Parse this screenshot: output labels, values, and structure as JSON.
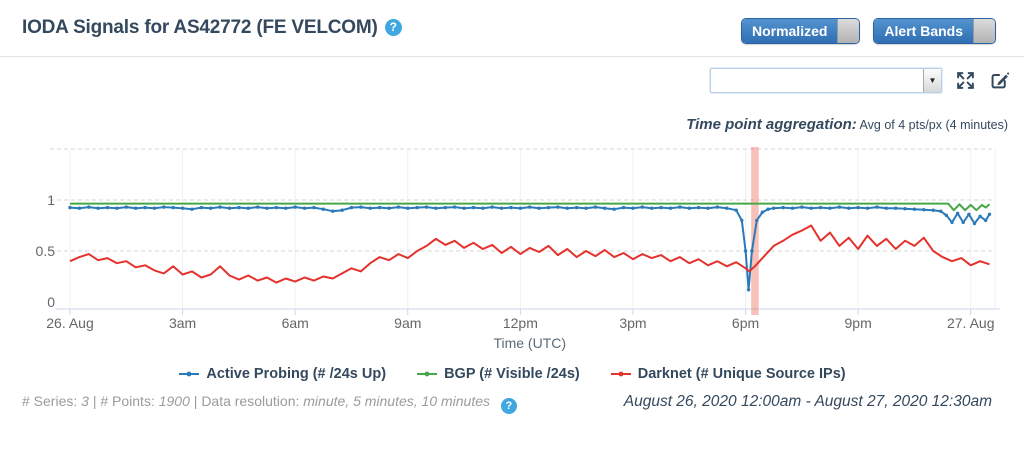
{
  "colors": {
    "accent_navy": "#34495e",
    "toggle_blue": "#3577b8",
    "help_blue": "#41a7e0",
    "axis_line": "#ccd6eb",
    "grid_dashed": "#d6d6d6",
    "grid_vertical": "#edf1f7"
  },
  "icons": {
    "help_glyph": "?",
    "dropdown_glyph": "▼"
  },
  "header": {
    "title": "IODA Signals for AS42772 (FE VELCOM)",
    "toggles": [
      {
        "label": "Normalized",
        "state": "on"
      },
      {
        "label": "Alert Bands",
        "state": "on"
      }
    ]
  },
  "controls": {
    "series_select_value": "",
    "aggregation_label": "Time point aggregation:",
    "aggregation_value": " Avg of 4 pts/px (4 minutes)"
  },
  "chart_data": {
    "type": "line",
    "xlabel": "Time (UTC)",
    "xlim": [
      0,
      24.5
    ],
    "ylim": [
      0,
      1.5
    ],
    "y_ticks": [
      0,
      0.5,
      1
    ],
    "grid_lines_y": [
      0.5,
      1,
      1.5
    ],
    "x_ticks": [
      {
        "t": 0,
        "label": "26. Aug"
      },
      {
        "t": 3,
        "label": "3am"
      },
      {
        "t": 6,
        "label": "6am"
      },
      {
        "t": 9,
        "label": "9am"
      },
      {
        "t": 12,
        "label": "12pm"
      },
      {
        "t": 15,
        "label": "3pm"
      },
      {
        "t": 18,
        "label": "6pm"
      },
      {
        "t": 21,
        "label": "9pm"
      },
      {
        "t": 24,
        "label": "27. Aug"
      }
    ],
    "alert_band": {
      "t_start": 18.15,
      "t_end": 18.35,
      "color": "rgba(233,89,70,0.38)"
    },
    "series": [
      {
        "name": "Active Probing (# /24s Up)",
        "color": "#2a7ab9",
        "markers": true,
        "points": [
          [
            0,
            0.925
          ],
          [
            0.25,
            0.92
          ],
          [
            0.5,
            0.93
          ],
          [
            0.75,
            0.92
          ],
          [
            1,
            0.925
          ],
          [
            1.25,
            0.92
          ],
          [
            1.5,
            0.93
          ],
          [
            1.75,
            0.92
          ],
          [
            2,
            0.925
          ],
          [
            2.25,
            0.92
          ],
          [
            2.5,
            0.93
          ],
          [
            2.75,
            0.925
          ],
          [
            3,
            0.92
          ],
          [
            3.25,
            0.91
          ],
          [
            3.5,
            0.925
          ],
          [
            3.75,
            0.92
          ],
          [
            4,
            0.93
          ],
          [
            4.25,
            0.92
          ],
          [
            4.5,
            0.925
          ],
          [
            4.75,
            0.92
          ],
          [
            5,
            0.93
          ],
          [
            5.25,
            0.92
          ],
          [
            5.5,
            0.925
          ],
          [
            5.75,
            0.92
          ],
          [
            6,
            0.93
          ],
          [
            6.25,
            0.92
          ],
          [
            6.5,
            0.925
          ],
          [
            6.75,
            0.91
          ],
          [
            7,
            0.89
          ],
          [
            7.25,
            0.9
          ],
          [
            7.5,
            0.925
          ],
          [
            7.75,
            0.93
          ],
          [
            8,
            0.92
          ],
          [
            8.25,
            0.925
          ],
          [
            8.5,
            0.92
          ],
          [
            8.75,
            0.93
          ],
          [
            9,
            0.92
          ],
          [
            9.25,
            0.925
          ],
          [
            9.5,
            0.93
          ],
          [
            9.75,
            0.92
          ],
          [
            10,
            0.925
          ],
          [
            10.25,
            0.93
          ],
          [
            10.5,
            0.92
          ],
          [
            10.75,
            0.925
          ],
          [
            11,
            0.92
          ],
          [
            11.25,
            0.93
          ],
          [
            11.5,
            0.92
          ],
          [
            11.75,
            0.925
          ],
          [
            12,
            0.92
          ],
          [
            12.25,
            0.93
          ],
          [
            12.5,
            0.92
          ],
          [
            12.75,
            0.925
          ],
          [
            13,
            0.93
          ],
          [
            13.25,
            0.92
          ],
          [
            13.5,
            0.925
          ],
          [
            13.75,
            0.92
          ],
          [
            14,
            0.93
          ],
          [
            14.25,
            0.92
          ],
          [
            14.5,
            0.91
          ],
          [
            14.75,
            0.925
          ],
          [
            15,
            0.92
          ],
          [
            15.25,
            0.93
          ],
          [
            15.5,
            0.92
          ],
          [
            15.75,
            0.925
          ],
          [
            16,
            0.92
          ],
          [
            16.25,
            0.93
          ],
          [
            16.5,
            0.92
          ],
          [
            16.75,
            0.925
          ],
          [
            17,
            0.92
          ],
          [
            17.25,
            0.93
          ],
          [
            17.5,
            0.92
          ],
          [
            17.75,
            0.9
          ],
          [
            17.9,
            0.8
          ],
          [
            18,
            0.5
          ],
          [
            18.08,
            0.12
          ],
          [
            18.17,
            0.5
          ],
          [
            18.3,
            0.8
          ],
          [
            18.45,
            0.88
          ],
          [
            18.6,
            0.91
          ],
          [
            18.75,
            0.92
          ],
          [
            19,
            0.925
          ],
          [
            19.25,
            0.92
          ],
          [
            19.5,
            0.93
          ],
          [
            19.75,
            0.92
          ],
          [
            20,
            0.925
          ],
          [
            20.25,
            0.92
          ],
          [
            20.5,
            0.93
          ],
          [
            20.75,
            0.92
          ],
          [
            21,
            0.925
          ],
          [
            21.25,
            0.92
          ],
          [
            21.5,
            0.93
          ],
          [
            21.75,
            0.92
          ],
          [
            22,
            0.92
          ],
          [
            22.25,
            0.915
          ],
          [
            22.5,
            0.91
          ],
          [
            22.75,
            0.905
          ],
          [
            23,
            0.9
          ],
          [
            23.2,
            0.89
          ],
          [
            23.35,
            0.85
          ],
          [
            23.5,
            0.78
          ],
          [
            23.65,
            0.87
          ],
          [
            23.8,
            0.78
          ],
          [
            23.95,
            0.86
          ],
          [
            24.1,
            0.77
          ],
          [
            24.25,
            0.84
          ],
          [
            24.4,
            0.8
          ],
          [
            24.5,
            0.86
          ]
        ]
      },
      {
        "name": "BGP (# Visible /24s)",
        "color": "#46a746",
        "markers": false,
        "points": [
          [
            0,
            0.965
          ],
          [
            3,
            0.965
          ],
          [
            6,
            0.965
          ],
          [
            9,
            0.965
          ],
          [
            12,
            0.965
          ],
          [
            15,
            0.965
          ],
          [
            18,
            0.965
          ],
          [
            21,
            0.965
          ],
          [
            23.4,
            0.965
          ],
          [
            23.55,
            0.9
          ],
          [
            23.7,
            0.958
          ],
          [
            23.85,
            0.9
          ],
          [
            24,
            0.952
          ],
          [
            24.15,
            0.9
          ],
          [
            24.3,
            0.952
          ],
          [
            24.4,
            0.925
          ],
          [
            24.5,
            0.958
          ]
        ]
      },
      {
        "name": "Darknet (# Unique Source IPs)",
        "color": "#e4322d",
        "markers": false,
        "points": [
          [
            0,
            0.4
          ],
          [
            0.25,
            0.44
          ],
          [
            0.5,
            0.47
          ],
          [
            0.75,
            0.41
          ],
          [
            1,
            0.43
          ],
          [
            1.25,
            0.38
          ],
          [
            1.5,
            0.4
          ],
          [
            1.75,
            0.34
          ],
          [
            2,
            0.36
          ],
          [
            2.25,
            0.31
          ],
          [
            2.5,
            0.28
          ],
          [
            2.75,
            0.35
          ],
          [
            3,
            0.27
          ],
          [
            3.25,
            0.3
          ],
          [
            3.5,
            0.24
          ],
          [
            3.75,
            0.27
          ],
          [
            4,
            0.35
          ],
          [
            4.25,
            0.26
          ],
          [
            4.5,
            0.22
          ],
          [
            4.75,
            0.26
          ],
          [
            5,
            0.21
          ],
          [
            5.25,
            0.24
          ],
          [
            5.5,
            0.19
          ],
          [
            5.75,
            0.23
          ],
          [
            6,
            0.2
          ],
          [
            6.25,
            0.24
          ],
          [
            6.5,
            0.21
          ],
          [
            6.75,
            0.25
          ],
          [
            7,
            0.23
          ],
          [
            7.25,
            0.28
          ],
          [
            7.5,
            0.33
          ],
          [
            7.75,
            0.3
          ],
          [
            8,
            0.38
          ],
          [
            8.25,
            0.44
          ],
          [
            8.5,
            0.41
          ],
          [
            8.75,
            0.47
          ],
          [
            9,
            0.43
          ],
          [
            9.25,
            0.5
          ],
          [
            9.5,
            0.55
          ],
          [
            9.75,
            0.62
          ],
          [
            10,
            0.56
          ],
          [
            10.25,
            0.6
          ],
          [
            10.5,
            0.53
          ],
          [
            10.75,
            0.58
          ],
          [
            11,
            0.52
          ],
          [
            11.25,
            0.56
          ],
          [
            11.5,
            0.48
          ],
          [
            11.75,
            0.54
          ],
          [
            12,
            0.47
          ],
          [
            12.25,
            0.53
          ],
          [
            12.5,
            0.49
          ],
          [
            12.75,
            0.55
          ],
          [
            13,
            0.46
          ],
          [
            13.25,
            0.52
          ],
          [
            13.5,
            0.44
          ],
          [
            13.75,
            0.5
          ],
          [
            14,
            0.45
          ],
          [
            14.25,
            0.51
          ],
          [
            14.5,
            0.44
          ],
          [
            14.75,
            0.48
          ],
          [
            15,
            0.42
          ],
          [
            15.25,
            0.47
          ],
          [
            15.5,
            0.43
          ],
          [
            15.75,
            0.46
          ],
          [
            16,
            0.4
          ],
          [
            16.25,
            0.44
          ],
          [
            16.5,
            0.38
          ],
          [
            16.75,
            0.42
          ],
          [
            17,
            0.36
          ],
          [
            17.25,
            0.4
          ],
          [
            17.5,
            0.35
          ],
          [
            17.75,
            0.39
          ],
          [
            18,
            0.33
          ],
          [
            18.1,
            0.3
          ],
          [
            18.25,
            0.35
          ],
          [
            18.5,
            0.45
          ],
          [
            18.75,
            0.55
          ],
          [
            19,
            0.6
          ],
          [
            19.25,
            0.66
          ],
          [
            19.5,
            0.7
          ],
          [
            19.75,
            0.75
          ],
          [
            20,
            0.6
          ],
          [
            20.25,
            0.68
          ],
          [
            20.5,
            0.55
          ],
          [
            20.75,
            0.63
          ],
          [
            21,
            0.52
          ],
          [
            21.25,
            0.65
          ],
          [
            21.5,
            0.55
          ],
          [
            21.75,
            0.62
          ],
          [
            22,
            0.52
          ],
          [
            22.25,
            0.6
          ],
          [
            22.5,
            0.55
          ],
          [
            22.75,
            0.63
          ],
          [
            23,
            0.5
          ],
          [
            23.25,
            0.44
          ],
          [
            23.5,
            0.4
          ],
          [
            23.75,
            0.43
          ],
          [
            24,
            0.36
          ],
          [
            24.25,
            0.4
          ],
          [
            24.5,
            0.37
          ]
        ]
      }
    ]
  },
  "footer": {
    "series_label": "# Series:",
    "series_value": "3",
    "points_label": "# Points:",
    "points_value": "1900",
    "resolution_label": "Data resolution:",
    "resolution_value": "minute, 5 minutes, 10 minutes",
    "separator": "|",
    "date_range": "August 26, 2020 12:00am - August 27, 2020 12:30am"
  }
}
